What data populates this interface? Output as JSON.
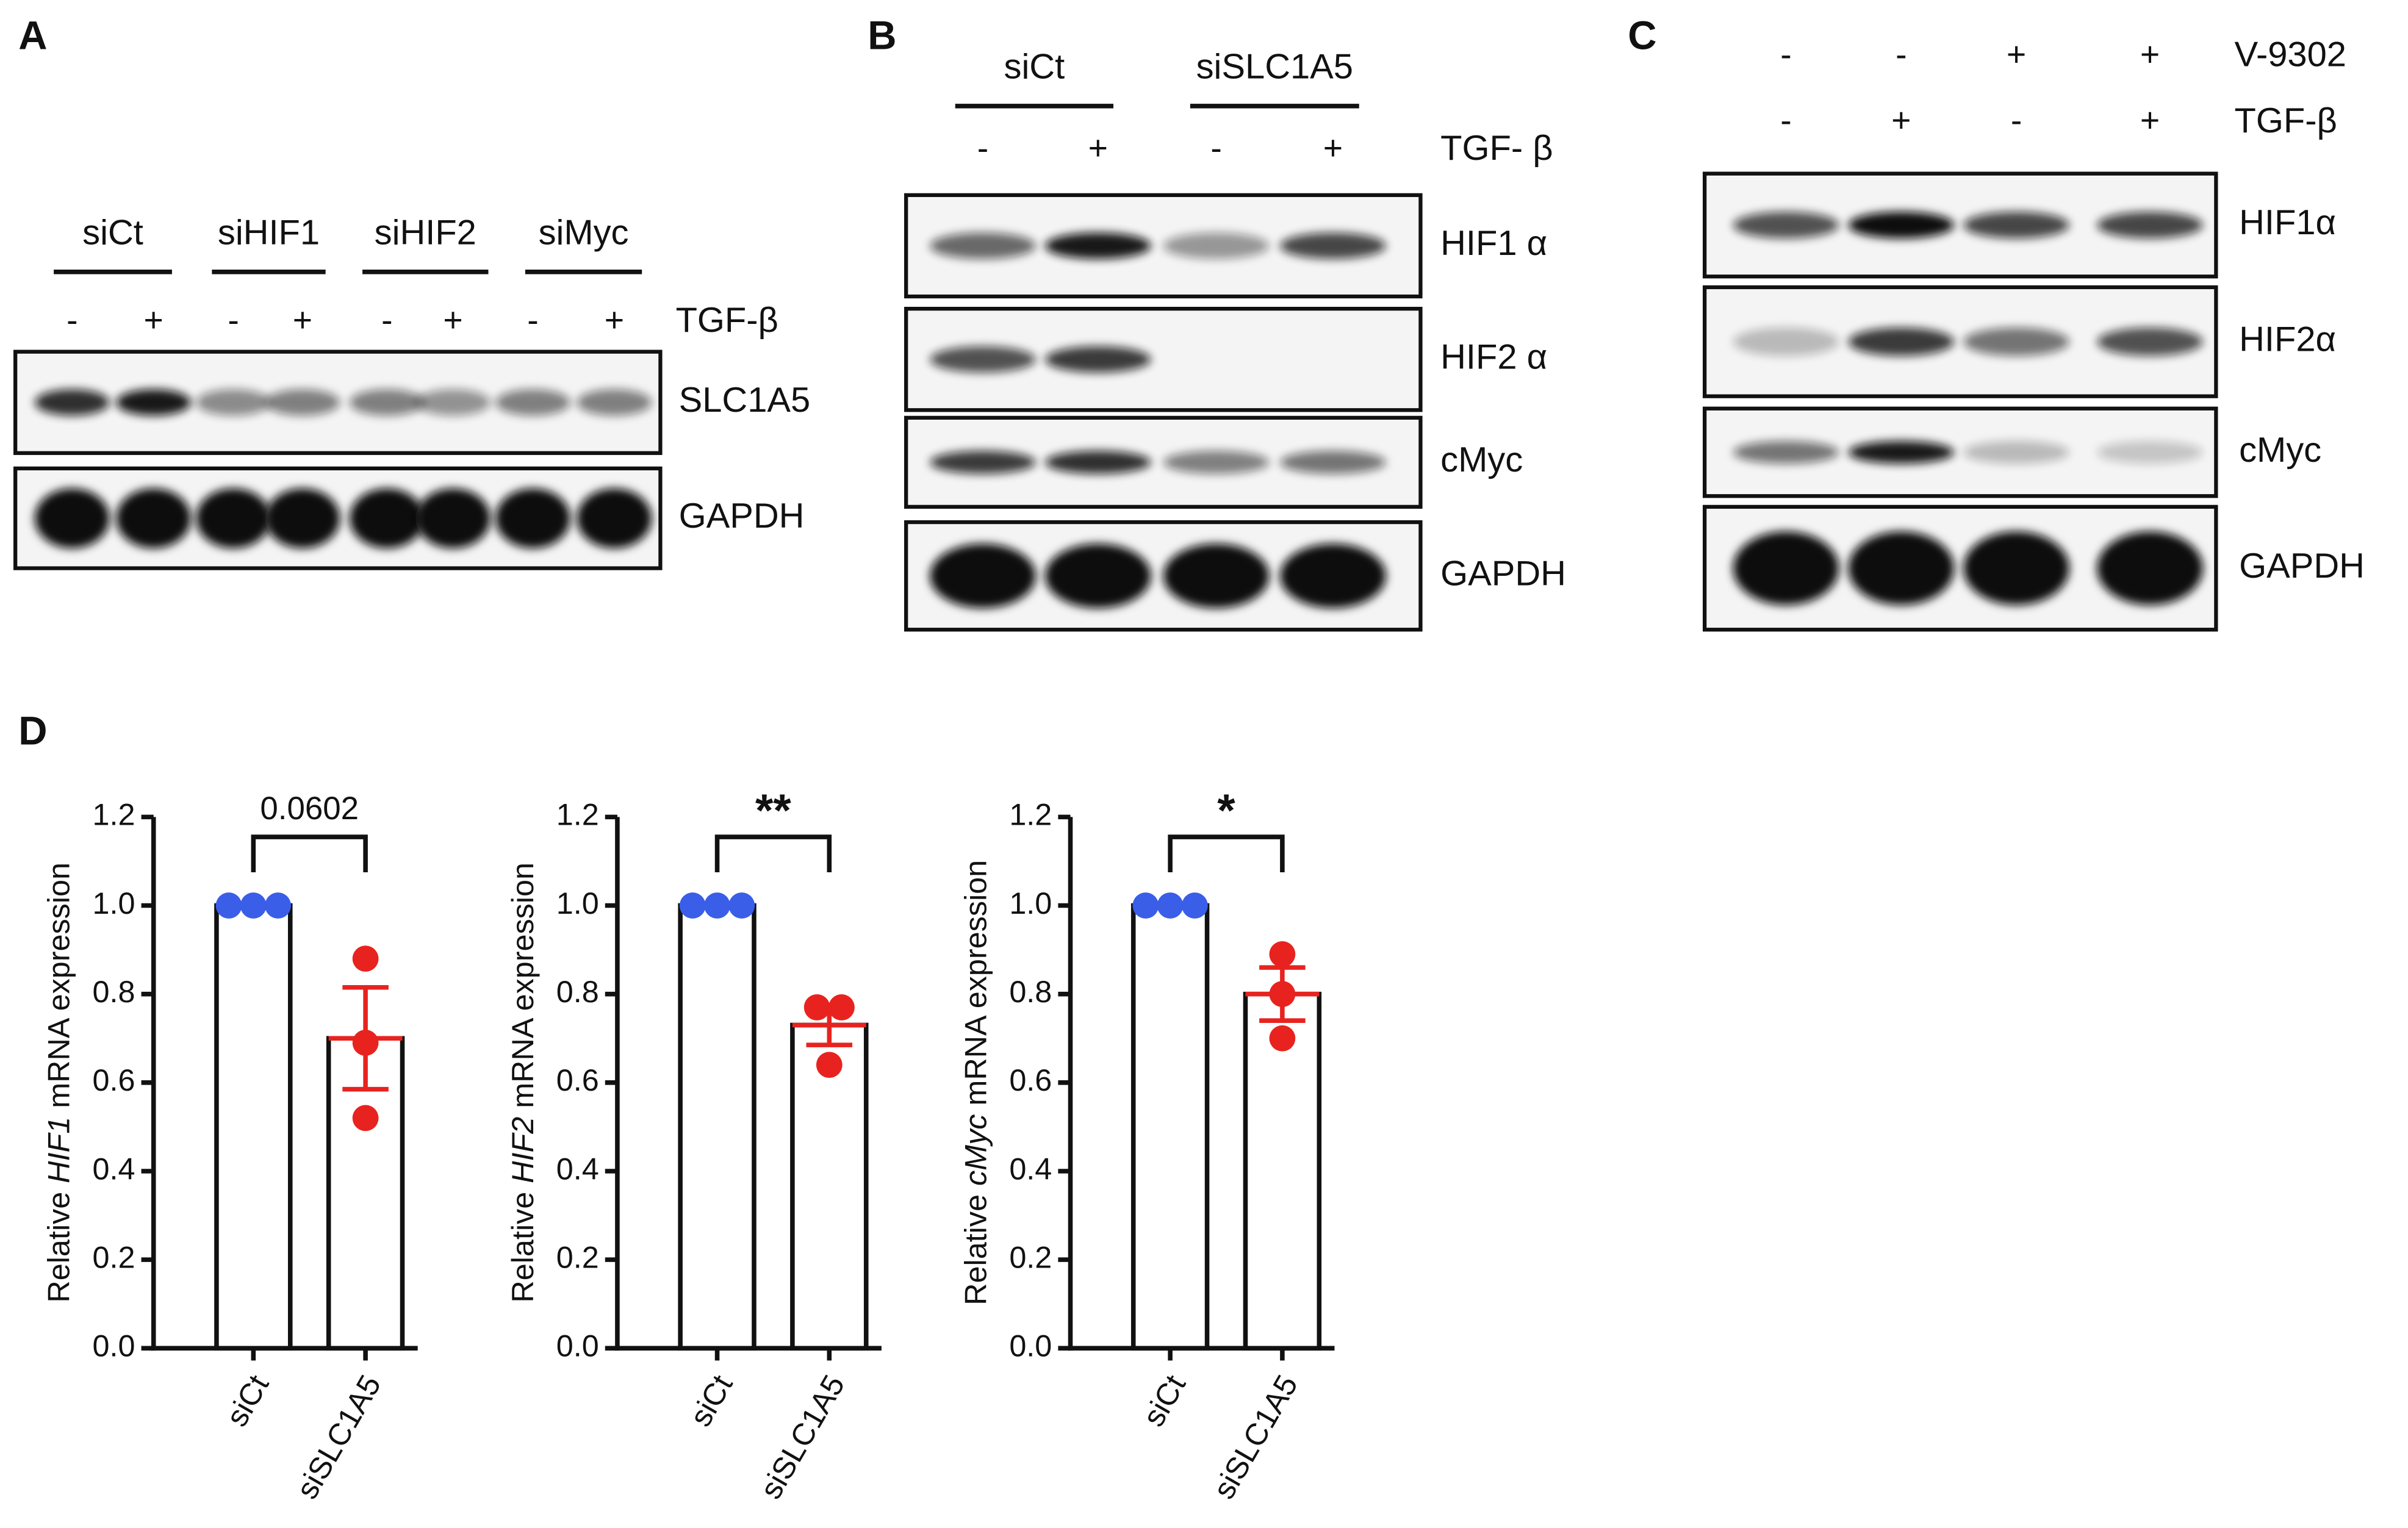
{
  "blots": [
    {
      "label": "A",
      "groups": [
        "siCt",
        "siHIF1",
        "siHIF2",
        "siMyc"
      ],
      "treatments": [
        {
          "label": "TGF-β",
          "signs": [
            "-",
            "+",
            "-",
            "+",
            "-",
            "+",
            "-",
            "+"
          ]
        }
      ],
      "rows": [
        "SLC1A5",
        "GAPDH"
      ]
    },
    {
      "label": "B",
      "groups": [
        "siCt",
        "siSLC1A5"
      ],
      "treatments": [
        {
          "label": "TGF- β",
          "signs": [
            "-",
            "+",
            "-",
            "+"
          ]
        }
      ],
      "rows": [
        "HIF1 α",
        "HIF2 α",
        "cMyc",
        "GAPDH"
      ]
    },
    {
      "label": "C",
      "groups": [],
      "treatments": [
        {
          "label": "V-9302",
          "signs": [
            "-",
            "-",
            "+",
            "+"
          ]
        },
        {
          "label": "TGF-β",
          "signs": [
            "-",
            "+",
            "-",
            "+"
          ]
        }
      ],
      "rows": [
        "HIF1α",
        "HIF2α",
        "cMyc",
        "GAPDH"
      ]
    }
  ],
  "chart_panel_label": "D",
  "chart_data": [
    {
      "type": "bar",
      "y_label_parts": [
        "Relative ",
        "HIF1",
        " mRNA expression"
      ],
      "categories": [
        "siCt",
        "siSLC1A5"
      ],
      "values": [
        1.0,
        0.7
      ],
      "errors": [
        0,
        0.115
      ],
      "points": [
        [
          1.0,
          1.0,
          1.0
        ],
        [
          0.88,
          0.69,
          0.52
        ]
      ],
      "point_colors": [
        "#3a5ee8",
        "#e8231f"
      ],
      "significance": "0.0602",
      "ylim": [
        0,
        1.2
      ],
      "yticks": [
        {
          "value": 0,
          "label": "0.0"
        },
        0.2,
        0.4,
        0.6,
        0.8,
        {
          "value": 1,
          "label": "1.0"
        },
        1.2
      ]
    },
    {
      "type": "bar",
      "y_label_parts": [
        "Relative ",
        "HIF2",
        " mRNA expression"
      ],
      "categories": [
        "siCt",
        "siSLC1A5"
      ],
      "values": [
        1.0,
        0.73
      ],
      "errors": [
        0,
        0.045
      ],
      "points": [
        [
          1.0,
          1.0,
          1.0
        ],
        [
          0.77,
          0.77,
          0.64
        ]
      ],
      "point_colors": [
        "#3a5ee8",
        "#e8231f"
      ],
      "significance": "**",
      "ylim": [
        0,
        1.2
      ],
      "yticks": [
        {
          "value": 0,
          "label": "0.0"
        },
        0.2,
        0.4,
        0.6,
        0.8,
        {
          "value": 1,
          "label": "1.0"
        },
        1.2
      ]
    },
    {
      "type": "bar",
      "y_label_parts": [
        "Relative ",
        "cMyc",
        " mRNA expression"
      ],
      "categories": [
        "siCt",
        "siSLC1A5"
      ],
      "values": [
        1.0,
        0.8
      ],
      "errors": [
        0,
        0.06
      ],
      "points": [
        [
          1.0,
          1.0,
          1.0
        ],
        [
          0.89,
          0.8,
          0.7
        ]
      ],
      "point_colors": [
        "#3a5ee8",
        "#e8231f"
      ],
      "significance": "*",
      "ylim": [
        0,
        1.2
      ],
      "yticks": [
        {
          "value": 0,
          "label": "0.0"
        },
        0.2,
        0.4,
        0.6,
        0.8,
        {
          "value": 1,
          "label": "1.0"
        },
        1.2
      ]
    }
  ]
}
